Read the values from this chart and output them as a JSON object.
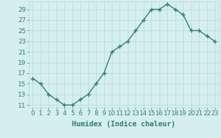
{
  "x": [
    0,
    1,
    2,
    3,
    4,
    5,
    6,
    7,
    8,
    9,
    10,
    11,
    12,
    13,
    14,
    15,
    16,
    17,
    18,
    19,
    20,
    21,
    22,
    23
  ],
  "y": [
    16,
    15,
    13,
    12,
    11,
    11,
    12,
    13,
    15,
    17,
    21,
    22,
    23,
    25,
    27,
    29,
    29,
    30,
    29,
    28,
    25,
    25,
    24,
    23
  ],
  "line_color": "#2d7d6d",
  "marker": "+",
  "marker_size": 4,
  "marker_lw": 1.0,
  "line_width": 1.0,
  "bg_color": "#d5eeee",
  "grid_color": "#b8d8d8",
  "xlabel": "Humidex (Indice chaleur)",
  "xlim": [
    -0.5,
    23.5
  ],
  "ylim": [
    10.5,
    30.5
  ],
  "yticks": [
    11,
    13,
    15,
    17,
    19,
    21,
    23,
    25,
    27,
    29
  ],
  "xticks": [
    0,
    1,
    2,
    3,
    4,
    5,
    6,
    7,
    8,
    9,
    10,
    11,
    12,
    13,
    14,
    15,
    16,
    17,
    18,
    19,
    20,
    21,
    22,
    23
  ],
  "tick_fontsize": 6.5,
  "xlabel_fontsize": 7.5
}
